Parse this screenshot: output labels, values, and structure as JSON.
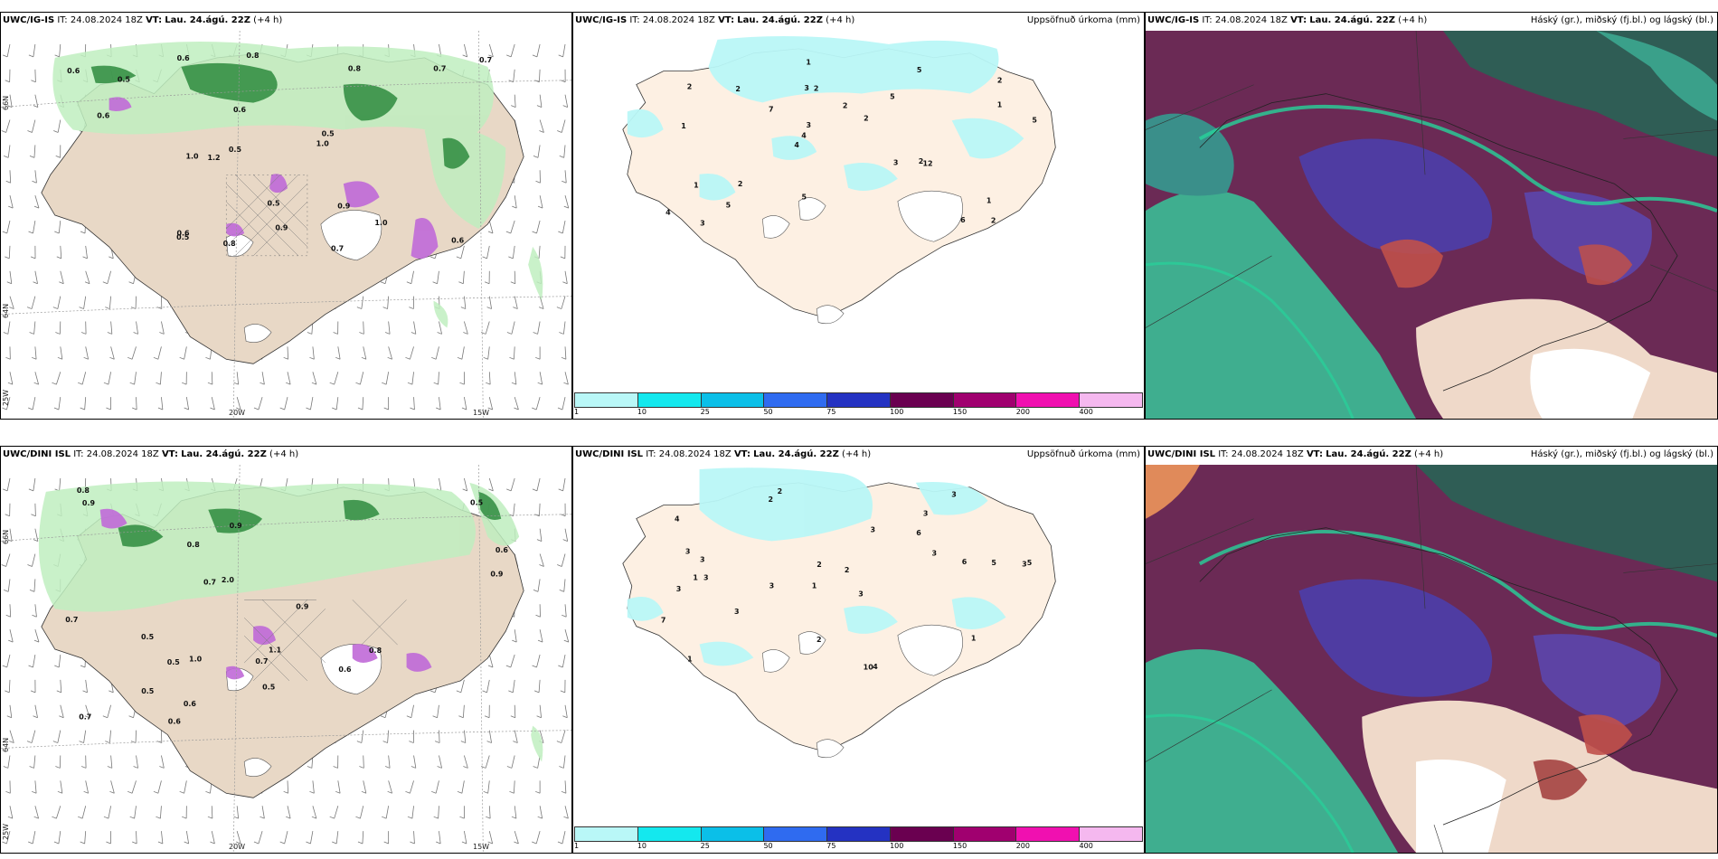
{
  "rows": [
    {
      "model": "UWC/IG-IS",
      "it_label": "IT:",
      "it": "24.08.2024 18Z",
      "vt_label": "VT:",
      "vt": "Lau. 24.ágú. 22Z",
      "lead": "(+4 h)"
    },
    {
      "model": "UWC/DINI ISL",
      "it_label": "IT:",
      "it": "24.08.2024 18Z",
      "vt_label": "VT:",
      "vt": "Lau. 24.ágú. 22Z",
      "lead": "(+4 h)"
    }
  ],
  "precip_title": "Uppsöfnuð úrkoma (mm)",
  "cloud_title": "Háský (gr.), miðský (fj.bl.) og lágský (bl.)",
  "axis_labels": {
    "lon_20w": "20W",
    "lon_15w": "15W",
    "lat_66n": "66N",
    "lat_64n": "64N",
    "lon_25w": "25W"
  },
  "colorbar": {
    "ticks": [
      "1",
      "10",
      "25",
      "50",
      "75",
      "100",
      "150",
      "200",
      "400"
    ],
    "colors": [
      "#b9f7f7",
      "#14e8ee",
      "#0bbfe8",
      "#2f6bf0",
      "#2432c2",
      "#6a0050",
      "#a0006f",
      "#f010b0",
      "#f5b8ef"
    ]
  },
  "precip_numbers_top": [
    "2",
    "1",
    "2",
    "4",
    "5",
    "3",
    "3",
    "2",
    "1",
    "7",
    "4",
    "5",
    "2",
    "2",
    "12",
    "2",
    "1",
    "5",
    "3",
    "1",
    "4",
    "5",
    "3",
    "2",
    "5",
    "2",
    "6",
    "1",
    "2"
  ],
  "precip_numbers_bottom": [
    "2",
    "3",
    "3",
    "1",
    "3",
    "3",
    "4",
    "6",
    "3",
    "3",
    "2",
    "1",
    "2",
    "3",
    "10",
    "4",
    "2",
    "3",
    "3",
    "3",
    "3",
    "1",
    "5",
    "5",
    "7",
    "3",
    "2",
    "6",
    "1"
  ],
  "fog_numbers_top": [
    "0.8",
    "0.7",
    "0.6",
    "1.0",
    "0.6",
    "0.5",
    "1.0",
    "0.6",
    "0.8",
    "0.6",
    "0.7",
    "0.9",
    "0.5",
    "0.5",
    "0.8",
    "1.0",
    "0.6",
    "0.5",
    "1.2",
    "0.6",
    "0.9",
    "0.7",
    "0.5"
  ],
  "fog_numbers_bottom": [
    "0.9",
    "0.8",
    "0.7",
    "0.5",
    "0.6",
    "0.6",
    "0.9",
    "1.0",
    "0.7",
    "0.8",
    "0.5",
    "0.9",
    "0.6",
    "0.5",
    "1.1",
    "0.7",
    "0.7",
    "0.5",
    "0.8",
    "2.0",
    "0.9",
    "0.5",
    "0.6"
  ]
}
